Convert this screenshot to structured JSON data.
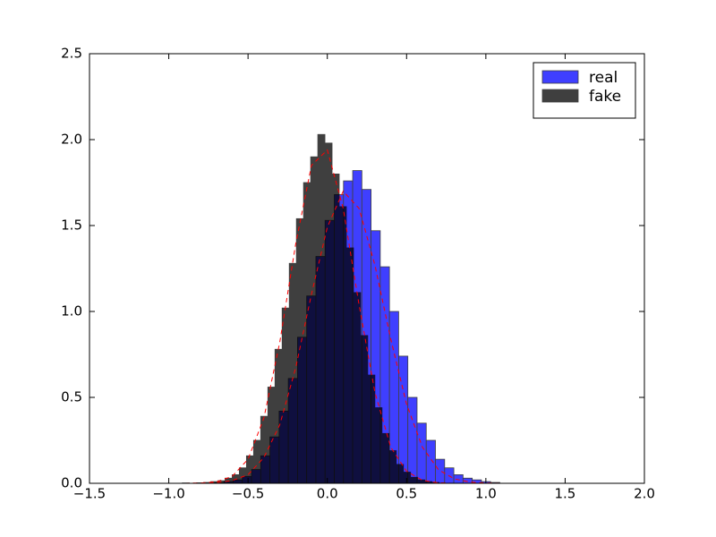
{
  "chart_data": {
    "type": "histogram",
    "xlim": [
      -1.5,
      2.0
    ],
    "xticks": [
      {
        "value": -1.5,
        "label": "−1.5"
      },
      {
        "value": -1.0,
        "label": "−1.0"
      },
      {
        "value": -0.5,
        "label": "−0.5"
      },
      {
        "value": 0,
        "label": "0.0"
      },
      0.5,
      {
        "value": 1,
        "label": "1.0"
      },
      1.5,
      {
        "value": 2,
        "label": "2.0"
      }
    ],
    "ylim": [
      0,
      2.5
    ],
    "yticks": [
      {
        "value": 0,
        "label": "0.0"
      },
      0.5,
      {
        "value": 1,
        "label": "1.0"
      },
      1.5,
      {
        "value": 2,
        "label": "2.0"
      },
      2.5
    ],
    "grid": false,
    "legend": "upper right",
    "series": [
      {
        "name": "real",
        "color": "#0000ff",
        "opacity": 0.75,
        "bins": [
          -1.0,
          -0.942,
          -0.884,
          -0.826,
          -0.768,
          -0.71,
          -0.652,
          -0.594,
          -0.536,
          -0.478,
          -0.42,
          -0.362,
          -0.304,
          -0.246,
          -0.188,
          -0.13,
          -0.072,
          -0.014,
          0.044,
          0.102,
          0.16,
          0.218,
          0.276,
          0.334,
          0.392,
          0.45,
          0.508,
          0.566,
          0.624,
          0.682,
          0.74,
          0.798,
          0.856,
          0.914,
          0.972,
          1.03,
          1.088,
          1.146,
          1.204,
          1.262,
          1.32,
          1.378,
          1.436,
          1.494,
          1.552,
          1.61,
          1.668,
          1.726,
          1.784,
          1.842,
          1.9
        ],
        "values": [
          0,
          0,
          0,
          0,
          0.001,
          0.003,
          0.01,
          0.02,
          0.04,
          0.08,
          0.16,
          0.27,
          0.42,
          0.61,
          0.85,
          1.09,
          1.32,
          1.53,
          1.68,
          1.76,
          1.82,
          1.71,
          1.47,
          1.26,
          1.0,
          0.74,
          0.5,
          0.35,
          0.25,
          0.14,
          0.09,
          0.05,
          0.03,
          0.02,
          0.01,
          0.005,
          0,
          0,
          0,
          0,
          0,
          0,
          0,
          0,
          0,
          0,
          0,
          0,
          0,
          0
        ]
      },
      {
        "name": "fake",
        "color": "#000000",
        "opacity": 0.75,
        "bins": [
          -1.05,
          -1.005,
          -0.96,
          -0.915,
          -0.87,
          -0.825,
          -0.78,
          -0.735,
          -0.69,
          -0.645,
          -0.6,
          -0.555,
          -0.51,
          -0.465,
          -0.42,
          -0.375,
          -0.33,
          -0.285,
          -0.24,
          -0.195,
          -0.15,
          -0.105,
          -0.06,
          -0.015,
          0.03,
          0.075,
          0.12,
          0.165,
          0.21,
          0.255,
          0.3,
          0.345,
          0.39,
          0.435,
          0.48,
          0.525,
          0.57,
          0.615,
          0.66,
          0.705,
          0.75,
          0.795,
          0.84,
          0.885,
          0.93,
          0.975,
          1.02,
          1.065,
          1.11,
          1.155,
          1.2
        ],
        "values": [
          0,
          0,
          0,
          0.002,
          0,
          0.003,
          0.005,
          0.01,
          0.015,
          0.03,
          0.05,
          0.09,
          0.16,
          0.25,
          0.39,
          0.56,
          0.78,
          1.02,
          1.28,
          1.54,
          1.75,
          1.9,
          2.03,
          1.98,
          1.8,
          1.61,
          1.37,
          1.11,
          0.86,
          0.63,
          0.44,
          0.29,
          0.19,
          0.11,
          0.065,
          0.035,
          0.02,
          0.01,
          0.005,
          0,
          0,
          0,
          0,
          0,
          0,
          0,
          0,
          0,
          0,
          0
        ]
      }
    ],
    "lines": [
      {
        "color": "#ff0000",
        "style": "dashed",
        "x": [
          -1.0,
          -0.9,
          -0.8,
          -0.7,
          -0.6,
          -0.5,
          -0.4,
          -0.3,
          -0.2,
          -0.1,
          0,
          0.1,
          0.2,
          0.3,
          0.4,
          0.5,
          0.6,
          0.7,
          0.8,
          0.9,
          1.0,
          1.1,
          1.2,
          1.3,
          1.4,
          1.5,
          1.6,
          1.7,
          1.8,
          1.9
        ],
        "values": [
          0,
          0,
          0.001,
          0.004,
          0.016,
          0.05,
          0.15,
          0.34,
          0.67,
          1.1,
          1.49,
          1.7,
          1.6,
          1.27,
          0.84,
          0.46,
          0.21,
          0.08,
          0.026,
          0.007,
          0.002,
          0,
          0,
          0,
          0,
          0,
          0,
          0,
          0,
          0
        ]
      },
      {
        "color": "#ff0000",
        "style": "dashed",
        "x": [
          -1.0,
          -0.9,
          -0.8,
          -0.7,
          -0.6,
          -0.5,
          -0.4,
          -0.3,
          -0.2,
          -0.1,
          0,
          0.1,
          0.2,
          0.3,
          0.4,
          0.5,
          0.6,
          0.7,
          0.8,
          0.9,
          1.0,
          1.1,
          1.2,
          1.3,
          1.4,
          1.5,
          1.6,
          1.7,
          1.8,
          1.9
        ],
        "values": [
          0,
          0,
          0.002,
          0.009,
          0.04,
          0.14,
          0.38,
          0.82,
          1.39,
          1.85,
          1.94,
          1.6,
          1.04,
          0.53,
          0.21,
          0.07,
          0.017,
          0.003,
          0,
          0,
          0,
          0,
          0,
          0,
          0,
          0,
          0,
          0,
          0,
          0
        ]
      }
    ]
  }
}
